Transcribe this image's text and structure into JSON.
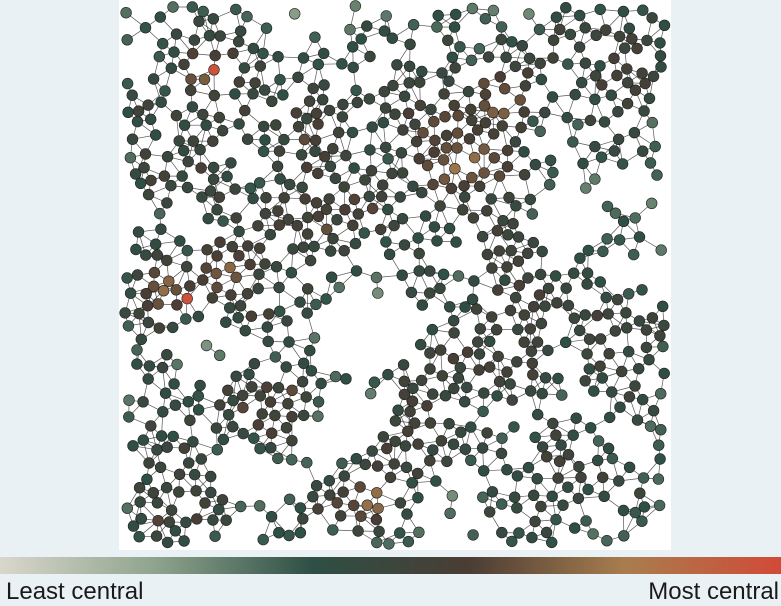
{
  "figure": {
    "colorbar": {
      "min_label": "Least central",
      "max_label": "Most central",
      "stops": [
        "#d9d7cc",
        "#8ea38d",
        "#2e4f45",
        "#4a3d34",
        "#a87d4e",
        "#d14a38"
      ]
    }
  },
  "colors": {
    "background": "#e9f1f4",
    "panel": "#ffffff",
    "edge": "#1f1f1f",
    "node_stroke": "#222222"
  }
}
